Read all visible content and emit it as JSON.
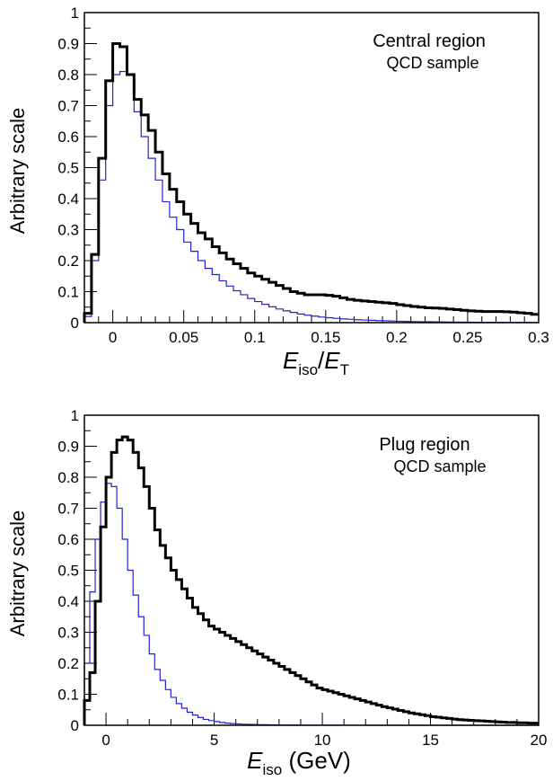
{
  "chart_data": [
    {
      "type": "histogram",
      "annotation_line1": "Central region",
      "annotation_line2": "QCD sample",
      "ylabel": "Arbitrary scale",
      "xlabel_main": "E",
      "xlabel_sub": "iso",
      "xlabel_div": "/",
      "xlabel_main2": "E",
      "xlabel_sub2": "T",
      "xlim": [
        -0.02,
        0.3
      ],
      "ylim": [
        0,
        1
      ],
      "xticks": [
        0,
        0.05,
        0.1,
        0.15,
        0.2,
        0.25,
        0.3
      ],
      "xtick_labels": [
        "0",
        "0.05",
        "0.1",
        "0.15",
        "0.2",
        "0.25",
        "0.3"
      ],
      "yticks": [
        0,
        0.1,
        0.2,
        0.3,
        0.4,
        0.5,
        0.6,
        0.7,
        0.8,
        0.9,
        1
      ],
      "ytick_labels": [
        "0",
        "0.1",
        "0.2",
        "0.3",
        "0.4",
        "0.5",
        "0.6",
        "0.7",
        "0.8",
        "0.9",
        "1"
      ],
      "series": [
        {
          "color": "#000000",
          "bin_edges": [
            -0.02,
            -0.015,
            -0.01,
            -0.005,
            0,
            0.005,
            0.01,
            0.015,
            0.02,
            0.025,
            0.03,
            0.035,
            0.04,
            0.045,
            0.05,
            0.055,
            0.06,
            0.065,
            0.07,
            0.075,
            0.08,
            0.085,
            0.09,
            0.095,
            0.1,
            0.105,
            0.11,
            0.115,
            0.12,
            0.125,
            0.13,
            0.135,
            0.14,
            0.145,
            0.15,
            0.155,
            0.16,
            0.165,
            0.17,
            0.175,
            0.18,
            0.185,
            0.19,
            0.195,
            0.2,
            0.205,
            0.21,
            0.215,
            0.22,
            0.225,
            0.23,
            0.235,
            0.24,
            0.245,
            0.25,
            0.255,
            0.26,
            0.265,
            0.27,
            0.275,
            0.28,
            0.285,
            0.29,
            0.295,
            0.3
          ],
          "values": [
            0.03,
            0.22,
            0.53,
            0.78,
            0.9,
            0.89,
            0.8,
            0.72,
            0.67,
            0.62,
            0.55,
            0.48,
            0.43,
            0.39,
            0.35,
            0.32,
            0.29,
            0.27,
            0.245,
            0.225,
            0.205,
            0.19,
            0.175,
            0.16,
            0.15,
            0.14,
            0.13,
            0.12,
            0.11,
            0.1,
            0.095,
            0.09,
            0.09,
            0.09,
            0.088,
            0.085,
            0.08,
            0.075,
            0.072,
            0.07,
            0.068,
            0.066,
            0.064,
            0.062,
            0.058,
            0.055,
            0.052,
            0.05,
            0.048,
            0.047,
            0.046,
            0.044,
            0.042,
            0.04,
            0.038,
            0.037,
            0.036,
            0.036,
            0.036,
            0.035,
            0.034,
            0.032,
            0.03,
            0.027
          ]
        },
        {
          "color": "#2222cc",
          "bin_edges": [
            -0.02,
            -0.015,
            -0.01,
            -0.005,
            0,
            0.005,
            0.01,
            0.015,
            0.02,
            0.025,
            0.03,
            0.035,
            0.04,
            0.045,
            0.05,
            0.055,
            0.06,
            0.065,
            0.07,
            0.075,
            0.08,
            0.085,
            0.09,
            0.095,
            0.1,
            0.105,
            0.11,
            0.115,
            0.12,
            0.125,
            0.13,
            0.135,
            0.14,
            0.145,
            0.15,
            0.155,
            0.16,
            0.165,
            0.17,
            0.175,
            0.18,
            0.185,
            0.19,
            0.195,
            0.2,
            0.205,
            0.21,
            0.215,
            0.22,
            0.225,
            0.23,
            0.235,
            0.24,
            0.245,
            0.25,
            0.255,
            0.26,
            0.265,
            0.27,
            0.275,
            0.28,
            0.285,
            0.29,
            0.295,
            0.3
          ],
          "values": [
            0.02,
            0.2,
            0.46,
            0.7,
            0.8,
            0.81,
            0.8,
            0.68,
            0.6,
            0.53,
            0.46,
            0.39,
            0.34,
            0.3,
            0.26,
            0.23,
            0.2,
            0.175,
            0.155,
            0.135,
            0.118,
            0.103,
            0.09,
            0.078,
            0.068,
            0.059,
            0.051,
            0.044,
            0.038,
            0.033,
            0.028,
            0.024,
            0.021,
            0.018,
            0.016,
            0.014,
            0.012,
            0.011,
            0.0095,
            0.0085,
            0.0075,
            0.0066,
            0.0058,
            0.0051,
            0.0045,
            0.004,
            0.0035,
            0.0031,
            0.0028,
            0.0025,
            0.0022,
            0.002,
            0.0018,
            0.0016,
            0.0014,
            0.0013,
            0.0012,
            0.0011,
            0.001,
            0.0009,
            0.0008,
            0.0007,
            0.0007,
            0.0006
          ]
        }
      ]
    },
    {
      "type": "histogram",
      "annotation_line1": "Plug region",
      "annotation_line2": "QCD sample",
      "ylabel": "Arbitrary scale",
      "xlabel_main": "E",
      "xlabel_sub": "iso",
      "xlabel_rest": " (GeV)",
      "xlim": [
        -1,
        20
      ],
      "ylim": [
        0,
        1
      ],
      "xticks": [
        0,
        5,
        10,
        15,
        20
      ],
      "xtick_labels": [
        "0",
        "5",
        "10",
        "15",
        "20"
      ],
      "yticks": [
        0,
        0.1,
        0.2,
        0.3,
        0.4,
        0.5,
        0.6,
        0.7,
        0.8,
        0.9,
        1
      ],
      "ytick_labels": [
        "0",
        "0.1",
        "0.2",
        "0.3",
        "0.4",
        "0.5",
        "0.6",
        "0.7",
        "0.8",
        "0.9",
        "1"
      ],
      "series": [
        {
          "color": "#000000",
          "bin_edges": [
            -1,
            -0.75,
            -0.5,
            -0.25,
            0,
            0.25,
            0.5,
            0.75,
            1,
            1.25,
            1.5,
            1.75,
            2,
            2.25,
            2.5,
            2.75,
            3,
            3.25,
            3.5,
            3.75,
            4,
            4.25,
            4.5,
            4.75,
            5,
            5.25,
            5.5,
            5.75,
            6,
            6.25,
            6.5,
            6.75,
            7,
            7.25,
            7.5,
            7.75,
            8,
            8.25,
            8.5,
            8.75,
            9,
            9.25,
            9.5,
            9.75,
            10,
            10.25,
            10.5,
            10.75,
            11,
            11.25,
            11.5,
            11.75,
            12,
            12.25,
            12.5,
            12.75,
            13,
            13.25,
            13.5,
            13.75,
            14,
            14.25,
            14.5,
            14.75,
            15,
            15.25,
            15.5,
            15.75,
            16,
            16.25,
            16.5,
            16.75,
            17,
            17.25,
            17.5,
            17.75,
            18,
            18.25,
            18.5,
            18.75,
            19,
            19.25,
            19.5,
            19.75,
            20
          ],
          "values": [
            0.08,
            0.17,
            0.4,
            0.64,
            0.8,
            0.88,
            0.92,
            0.93,
            0.92,
            0.88,
            0.83,
            0.77,
            0.7,
            0.63,
            0.58,
            0.54,
            0.5,
            0.47,
            0.44,
            0.41,
            0.38,
            0.36,
            0.34,
            0.32,
            0.31,
            0.3,
            0.29,
            0.28,
            0.27,
            0.26,
            0.25,
            0.24,
            0.23,
            0.22,
            0.21,
            0.2,
            0.19,
            0.18,
            0.17,
            0.16,
            0.15,
            0.14,
            0.13,
            0.12,
            0.115,
            0.11,
            0.105,
            0.1,
            0.095,
            0.09,
            0.085,
            0.08,
            0.075,
            0.07,
            0.065,
            0.06,
            0.056,
            0.052,
            0.048,
            0.044,
            0.04,
            0.037,
            0.034,
            0.031,
            0.028,
            0.026,
            0.024,
            0.022,
            0.02,
            0.018,
            0.017,
            0.016,
            0.015,
            0.014,
            0.013,
            0.012,
            0.011,
            0.01,
            0.009,
            0.009,
            0.008,
            0.008,
            0.007,
            0.007
          ]
        },
        {
          "color": "#2222cc",
          "bin_edges": [
            -1,
            -0.75,
            -0.5,
            -0.25,
            0,
            0.25,
            0.5,
            0.75,
            1,
            1.25,
            1.5,
            1.75,
            2,
            2.25,
            2.5,
            2.75,
            3,
            3.25,
            3.5,
            3.75,
            4,
            4.25,
            4.5,
            4.75,
            5,
            5.25,
            5.5,
            5.75,
            6,
            6.25,
            6.5,
            6.75,
            7,
            7.25,
            7.5,
            7.75,
            8,
            8.25,
            8.5,
            8.75,
            9,
            9.25,
            9.5,
            9.75,
            10,
            10.25,
            10.5,
            10.75,
            11,
            11.25,
            11.5,
            11.75,
            12,
            12.25,
            12.5,
            12.75,
            13,
            13.25,
            13.5,
            13.75,
            14,
            14.25,
            14.5,
            14.75,
            15,
            15.25,
            15.5,
            15.75,
            16,
            16.25,
            16.5,
            16.75,
            17,
            17.25,
            17.5,
            17.75,
            18,
            18.25,
            18.5,
            18.75,
            19,
            19.25,
            19.5,
            19.75,
            20
          ],
          "values": [
            0.2,
            0.43,
            0.6,
            0.72,
            0.78,
            0.77,
            0.7,
            0.6,
            0.5,
            0.42,
            0.35,
            0.29,
            0.23,
            0.18,
            0.145,
            0.115,
            0.09,
            0.07,
            0.055,
            0.042,
            0.033,
            0.025,
            0.019,
            0.015,
            0.012,
            0.009,
            0.007,
            0.0055,
            0.0045,
            0.0035,
            0.003,
            0.0025,
            0.002,
            0.0017,
            0.0014,
            0.0012,
            0.001,
            0.0009,
            0.0008,
            0.0007,
            0.0006,
            0.0005,
            0.0005,
            0.0004,
            0.0004,
            0.0003,
            0.0003,
            0.0003,
            0.0002,
            0.0002,
            0.0002,
            0.0002,
            0.0001,
            0.0001,
            0.0001,
            0.0001,
            0.0001,
            0.0001,
            0.0001,
            0.0001,
            0.0001,
            0.0001,
            0.0001,
            0.0001,
            0.0001,
            0.0001,
            0.0001,
            0.0001,
            0.0001,
            0.0001,
            0.0001,
            0.0001,
            0.0001,
            0.0001,
            0.0001,
            0.0001,
            0.0001,
            0.0001,
            0.0001,
            0.0001,
            0.0001,
            0.0001,
            0.0001,
            0.0001
          ]
        }
      ]
    }
  ]
}
